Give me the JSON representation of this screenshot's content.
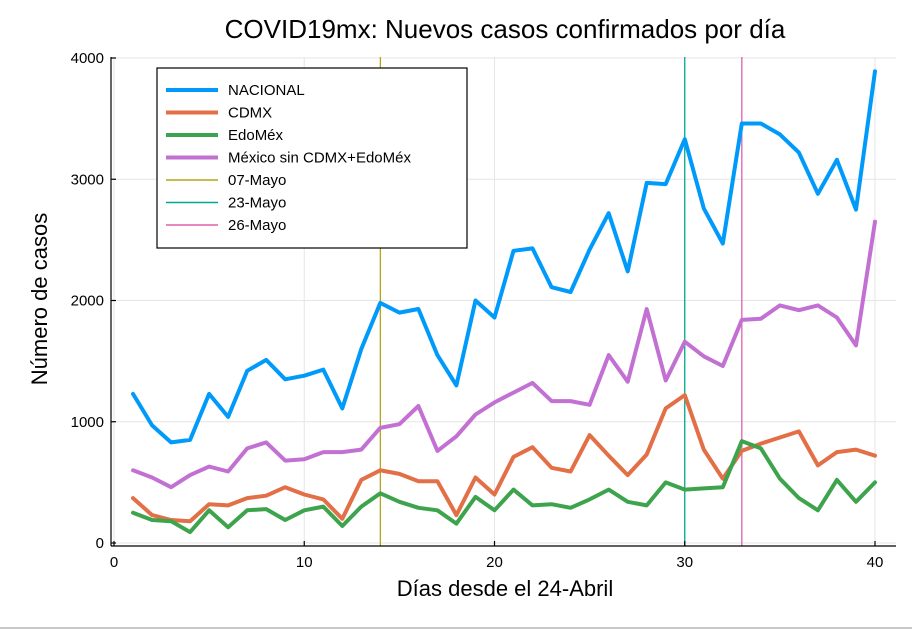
{
  "chart_data": {
    "type": "line",
    "title": "COVID19mx: Nuevos casos confirmados por día",
    "xlabel": "Días desde el 24-Abril",
    "ylabel": "Número de casos",
    "xlim": [
      0,
      40
    ],
    "ylim": [
      0,
      4000
    ],
    "xticks": [
      0,
      10,
      20,
      30,
      40
    ],
    "yticks": [
      0,
      1000,
      2000,
      3000,
      4000
    ],
    "grid": true,
    "legend_position": "top-left",
    "x": [
      1,
      2,
      3,
      4,
      5,
      6,
      7,
      8,
      9,
      10,
      11,
      12,
      13,
      14,
      15,
      16,
      17,
      18,
      19,
      20,
      21,
      22,
      23,
      24,
      25,
      26,
      27,
      28,
      29,
      30,
      31,
      32,
      33,
      34,
      35,
      36,
      37,
      38,
      39,
      40
    ],
    "series": [
      {
        "name": "NACIONAL",
        "color": "#009AFA",
        "values": [
          1230,
          970,
          830,
          850,
          1230,
          1040,
          1420,
          1510,
          1350,
          1380,
          1430,
          1110,
          1600,
          1980,
          1900,
          1930,
          1550,
          1300,
          2000,
          1860,
          2410,
          2430,
          2110,
          2070,
          2420,
          2720,
          2240,
          2970,
          2960,
          3330,
          2760,
          2470,
          3460,
          3460,
          3370,
          3220,
          2880,
          3160,
          2750,
          3890
        ]
      },
      {
        "name": "CDMX",
        "color": "#E26F46",
        "values": [
          370,
          230,
          190,
          180,
          320,
          310,
          370,
          390,
          460,
          400,
          360,
          200,
          520,
          600,
          570,
          510,
          510,
          230,
          540,
          400,
          710,
          790,
          620,
          590,
          890,
          720,
          560,
          730,
          1110,
          1220,
          770,
          530,
          760,
          820,
          870,
          920,
          640,
          750,
          770,
          720
        ]
      },
      {
        "name": "EdoMéx",
        "color": "#3DA44D",
        "values": [
          250,
          190,
          180,
          90,
          270,
          130,
          270,
          280,
          190,
          270,
          300,
          140,
          300,
          410,
          340,
          290,
          270,
          160,
          380,
          270,
          440,
          310,
          320,
          290,
          360,
          440,
          340,
          310,
          500,
          440,
          450,
          460,
          840,
          780,
          530,
          370,
          270,
          520,
          340,
          500
        ]
      },
      {
        "name": "México sin CDMX+EdoMéx",
        "color": "#C271D2",
        "values": [
          600,
          540,
          460,
          560,
          630,
          590,
          780,
          830,
          680,
          690,
          750,
          750,
          770,
          950,
          980,
          1130,
          760,
          880,
          1060,
          1160,
          1240,
          1320,
          1170,
          1170,
          1140,
          1550,
          1330,
          1930,
          1340,
          1660,
          1540,
          1460,
          1840,
          1850,
          1960,
          1920,
          1960,
          1860,
          1630,
          2650
        ]
      }
    ],
    "vlines": [
      {
        "name": "07-Mayo",
        "x": 14,
        "color": "#B8A41C"
      },
      {
        "name": "23-Mayo",
        "x": 30,
        "color": "#00A892"
      },
      {
        "name": "26-Mayo",
        "x": 33,
        "color": "#E060A8"
      }
    ]
  }
}
